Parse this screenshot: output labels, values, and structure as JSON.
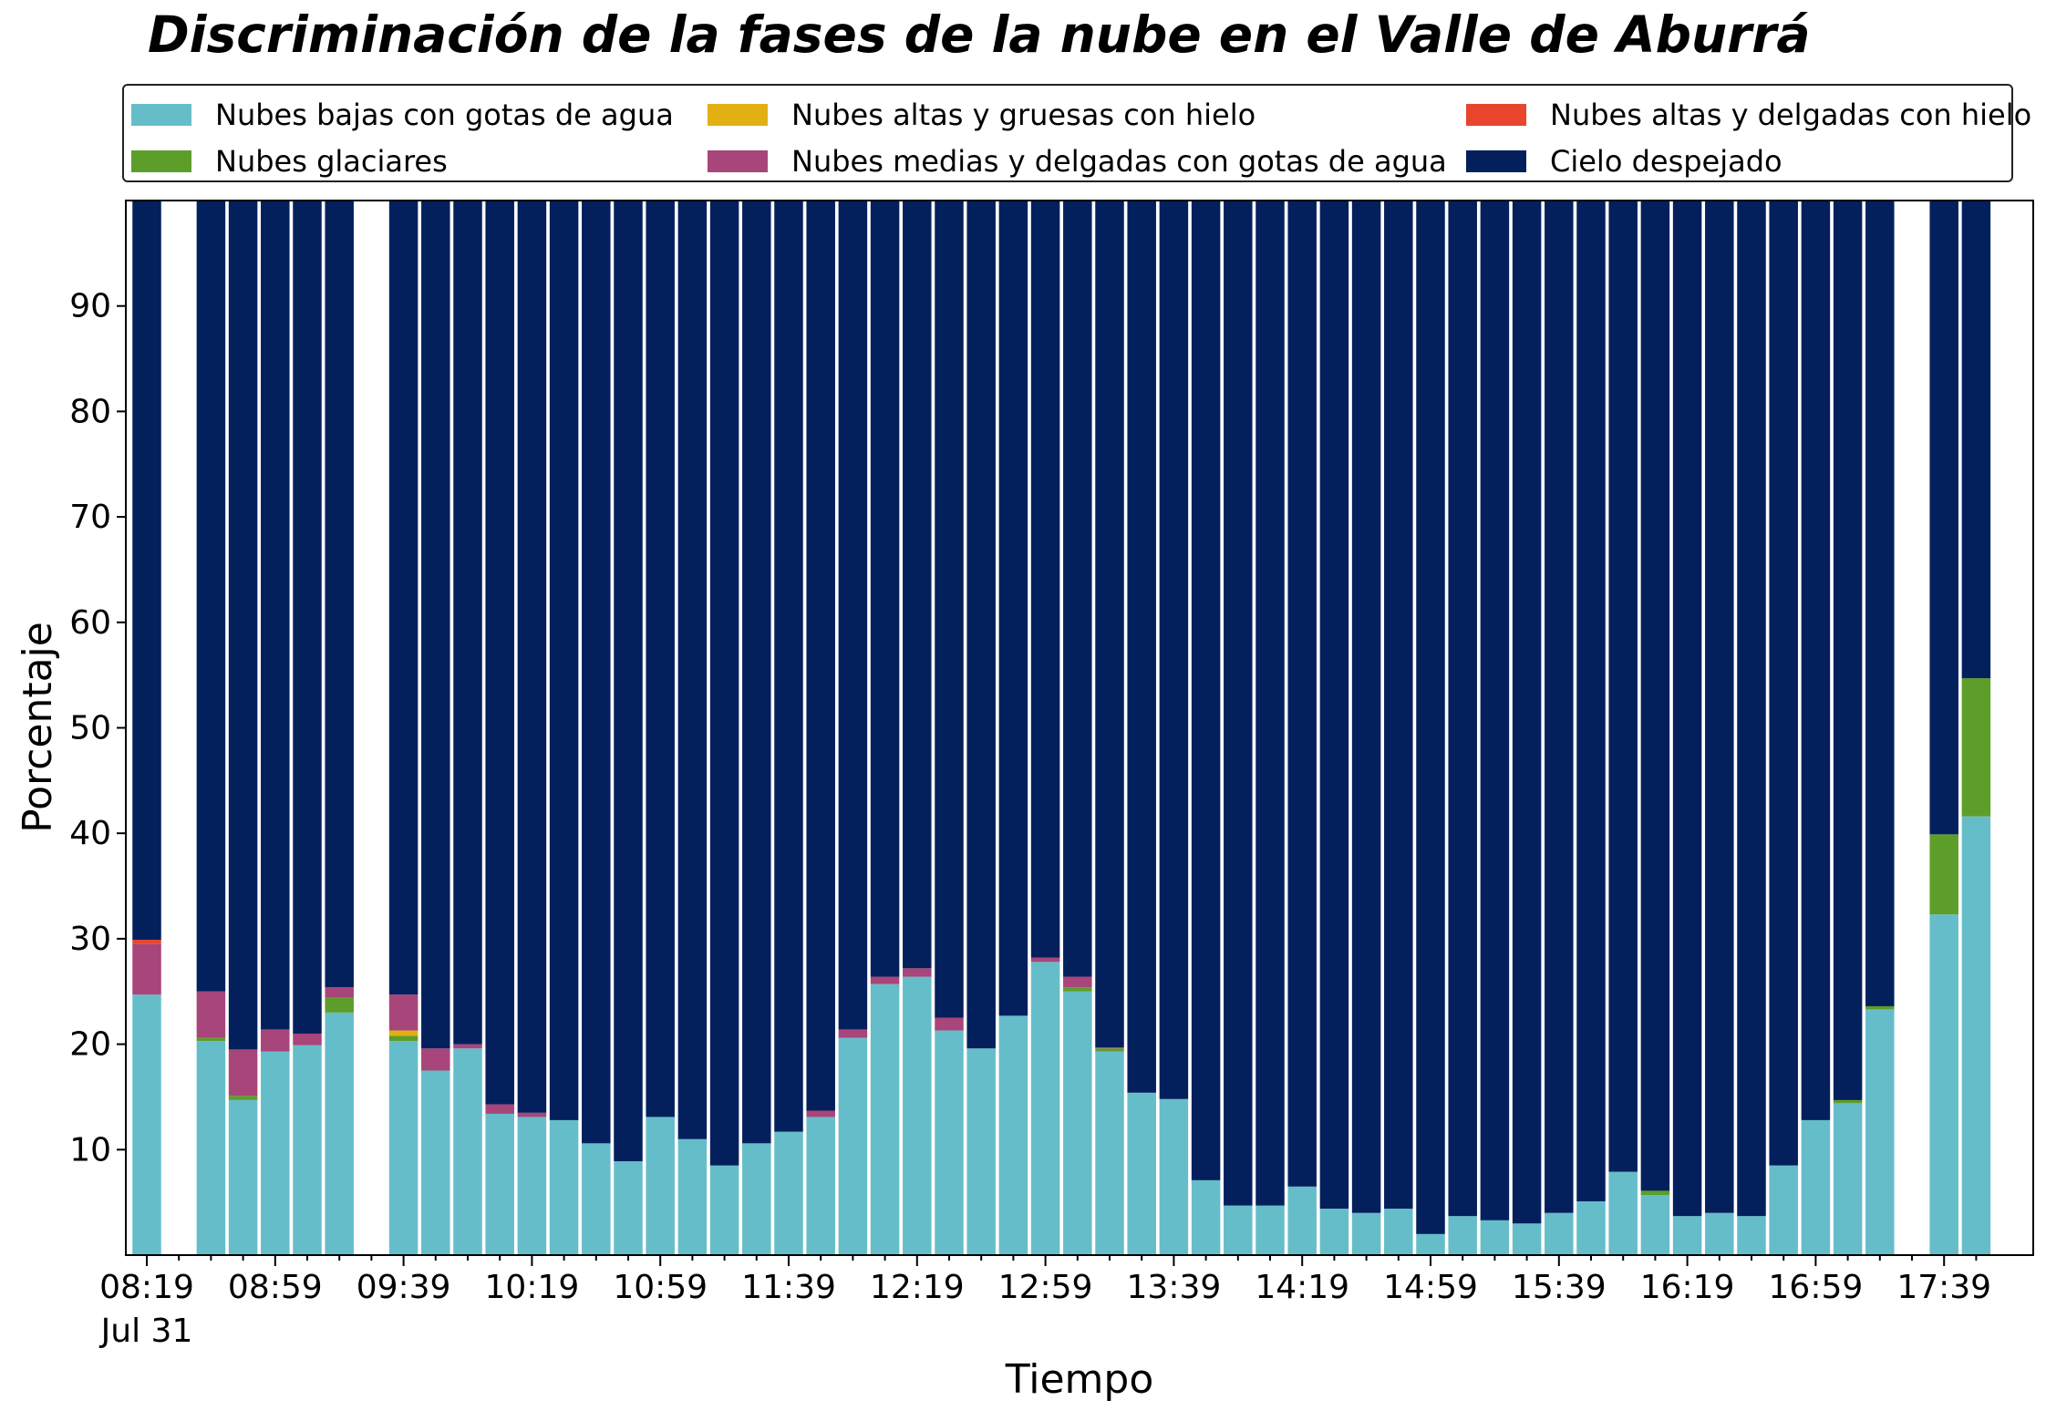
{
  "chart_data": {
    "type": "bar",
    "stacked": true,
    "title": "Discriminación de la fases de la nube en el Valle de Aburrá",
    "xlabel": "Tiempo",
    "ylabel": "Porcentaje",
    "ylim": [
      0,
      100
    ],
    "yticks": [
      10,
      20,
      30,
      40,
      50,
      60,
      70,
      80,
      90
    ],
    "grid": false,
    "legend_position": "top",
    "x_start": "08:19",
    "x_step_minutes": 10,
    "categories": [
      "08:19",
      "08:29",
      "08:39",
      "08:49",
      "08:59",
      "09:09",
      "09:19",
      "09:29",
      "09:39",
      "09:49",
      "09:59",
      "10:09",
      "10:19",
      "10:29",
      "10:39",
      "10:49",
      "10:59",
      "11:09",
      "11:19",
      "11:29",
      "11:39",
      "11:49",
      "11:59",
      "12:09",
      "12:19",
      "12:29",
      "12:39",
      "12:49",
      "12:59",
      "13:09",
      "13:19",
      "13:29",
      "13:39",
      "13:49",
      "13:59",
      "14:09",
      "14:19",
      "14:29",
      "14:39",
      "14:49",
      "14:59",
      "15:09",
      "15:19",
      "15:29",
      "15:39",
      "15:49",
      "15:59",
      "16:09",
      "16:19",
      "16:29",
      "16:39",
      "16:49",
      "16:59",
      "17:09",
      "17:19",
      "17:29",
      "17:39",
      "17:49"
    ],
    "x_tick_labels": [
      {
        "label": "08:19",
        "sublabel": "Jul 31"
      },
      {
        "label": "08:59"
      },
      {
        "label": "09:39"
      },
      {
        "label": "10:19"
      },
      {
        "label": "10:59"
      },
      {
        "label": "11:39"
      },
      {
        "label": "12:19"
      },
      {
        "label": "12:59"
      },
      {
        "label": "13:39"
      },
      {
        "label": "14:19"
      },
      {
        "label": "14:59"
      },
      {
        "label": "15:39"
      },
      {
        "label": "16:19"
      },
      {
        "label": "16:59"
      },
      {
        "label": "17:39"
      }
    ],
    "series": [
      {
        "name": "Nubes bajas con gotas de agua",
        "color": "#66BDCA",
        "values": [
          24.7,
          null,
          20.3,
          14.7,
          19.3,
          19.9,
          23.0,
          null,
          20.3,
          17.5,
          19.6,
          13.4,
          13.1,
          12.8,
          10.6,
          8.9,
          13.1,
          11.0,
          8.5,
          10.6,
          11.7,
          13.1,
          20.6,
          25.7,
          26.4,
          21.3,
          19.6,
          22.7,
          27.8,
          25.0,
          19.3,
          15.4,
          14.8,
          7.1,
          4.7,
          4.7,
          6.5,
          4.4,
          4.0,
          4.4,
          2.0,
          3.7,
          3.3,
          3.0,
          4.0,
          5.1,
          7.9,
          5.7,
          3.7,
          4.0,
          3.7,
          8.5,
          12.8,
          14.4,
          23.3,
          null,
          32.3,
          41.6
        ]
      },
      {
        "name": "Nubes glaciares",
        "color": "#5D9E2A",
        "values": [
          0,
          null,
          0.3,
          0.4,
          0,
          0,
          1.4,
          null,
          0.5,
          0,
          0,
          0,
          0,
          0,
          0,
          0,
          0,
          0,
          0,
          0,
          0,
          0,
          0,
          0,
          0,
          0,
          0,
          0,
          0,
          0.4,
          0.3,
          0,
          0,
          0,
          0,
          0,
          0,
          0,
          0,
          0,
          0,
          0,
          0,
          0,
          0,
          0,
          0,
          0.4,
          0,
          0,
          0,
          0,
          0,
          0.3,
          0.3,
          null,
          7.6,
          13.1
        ]
      },
      {
        "name": "Nubes altas y gruesas con hielo",
        "color": "#E2B012",
        "values": [
          0,
          null,
          0,
          0,
          0,
          0,
          0,
          null,
          0.5,
          0,
          0,
          0,
          0,
          0,
          0,
          0,
          0,
          0,
          0,
          0,
          0,
          0,
          0,
          0,
          0,
          0,
          0,
          0,
          0,
          0,
          0,
          0,
          0,
          0,
          0,
          0,
          0,
          0,
          0,
          0,
          0,
          0,
          0,
          0,
          0,
          0,
          0,
          0,
          0,
          0,
          0,
          0,
          0,
          0,
          0,
          null,
          0,
          0
        ]
      },
      {
        "name": "Nubes medias y delgadas con gotas de agua",
        "color": "#A8457A",
        "values": [
          4.8,
          null,
          4.4,
          4.4,
          2.1,
          1.1,
          1.0,
          null,
          3.4,
          2.1,
          0.4,
          0.9,
          0.4,
          0,
          0,
          0,
          0,
          0,
          0,
          0,
          0,
          0.6,
          0.8,
          0.7,
          0.8,
          1.2,
          0,
          0,
          0.4,
          1.0,
          0.1,
          0,
          0,
          0,
          0,
          0,
          0,
          0,
          0,
          0,
          0,
          0,
          0,
          0,
          0,
          0,
          0,
          0,
          0,
          0,
          0,
          0,
          0,
          0,
          0,
          null,
          0,
          0
        ]
      },
      {
        "name": "Nubes altas y delgadas con hielo",
        "color": "#E8452C",
        "values": [
          0.4,
          null,
          0,
          0,
          0,
          0,
          0,
          null,
          0,
          0,
          0,
          0,
          0,
          0,
          0,
          0,
          0,
          0,
          0,
          0,
          0,
          0,
          0,
          0,
          0,
          0,
          0,
          0,
          0,
          0,
          0,
          0,
          0,
          0,
          0,
          0,
          0,
          0,
          0,
          0,
          0,
          0,
          0,
          0,
          0,
          0,
          0,
          0,
          0,
          0,
          0,
          0,
          0,
          0,
          0,
          null,
          0,
          0
        ]
      },
      {
        "name": "Cielo despejado",
        "color": "#03205D",
        "values": [
          70.1,
          null,
          75.0,
          80.5,
          78.6,
          79.0,
          74.6,
          null,
          75.3,
          80.4,
          80.0,
          85.7,
          86.5,
          87.2,
          89.4,
          91.1,
          86.9,
          89.0,
          91.5,
          89.4,
          88.3,
          86.3,
          78.6,
          73.6,
          72.8,
          77.5,
          80.4,
          77.3,
          71.8,
          73.6,
          80.3,
          84.6,
          85.2,
          92.9,
          95.3,
          95.3,
          93.5,
          95.6,
          96.0,
          95.6,
          98.0,
          96.3,
          96.7,
          97.0,
          96.0,
          94.9,
          92.1,
          93.9,
          96.3,
          96.0,
          96.3,
          91.5,
          87.2,
          85.3,
          76.4,
          null,
          60.1,
          45.3
        ]
      }
    ]
  }
}
